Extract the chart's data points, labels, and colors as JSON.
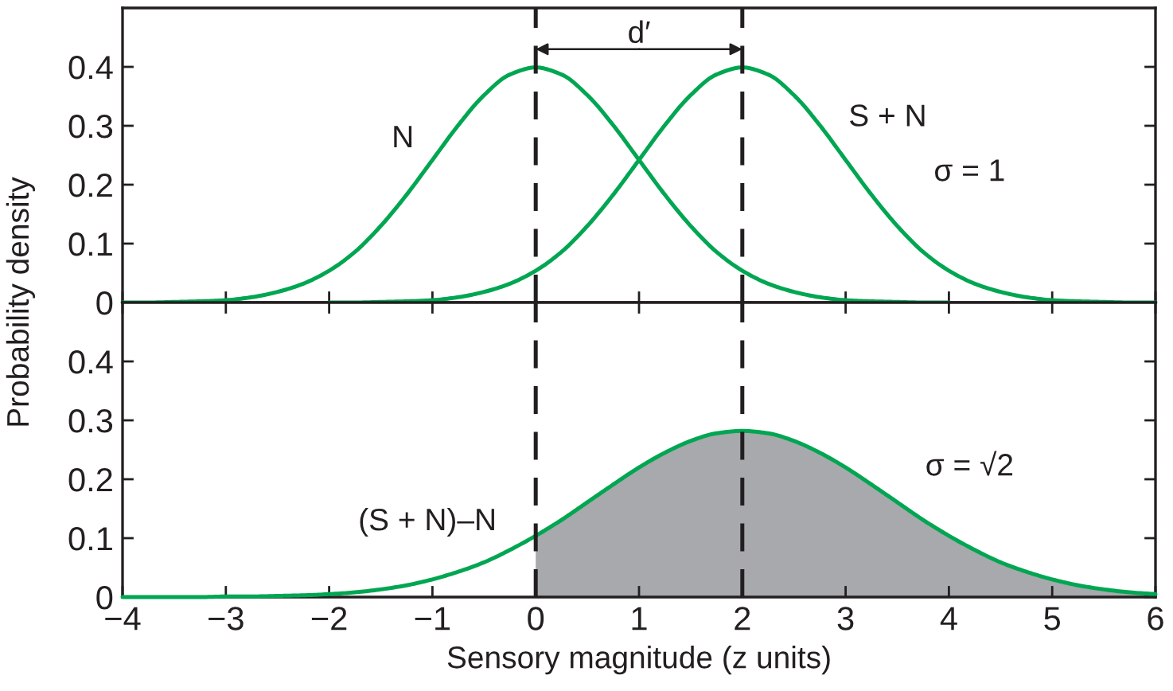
{
  "chart_data": [
    {
      "type": "line",
      "ylabel": "Probability density",
      "series": [
        {
          "color": "#00a651",
          "x": [
            -4,
            -3.75,
            -3.5,
            -3.25,
            -3,
            -2.75,
            -2.5,
            -2.25,
            -2,
            -1.75,
            -1.5,
            -1.25,
            -1,
            -0.75,
            -0.5,
            -0.25,
            0,
            0.25,
            0.5,
            0.75,
            1,
            1.25,
            1.5,
            1.75,
            2,
            2.25,
            2.5,
            2.75,
            3,
            3.25,
            3.5,
            3.75,
            4
          ],
          "values": [
            0,
            0,
            0.001,
            0.002,
            0.004,
            0.009,
            0.018,
            0.032,
            0.054,
            0.086,
            0.13,
            0.183,
            0.242,
            0.301,
            0.352,
            0.387,
            0.399,
            0.387,
            0.352,
            0.301,
            0.242,
            0.183,
            0.13,
            0.086,
            0.054,
            0.032,
            0.018,
            0.009,
            0.004,
            0.002,
            0.001,
            0,
            0
          ]
        },
        {
          "color": "#00a651",
          "x": [
            -2,
            -1.75,
            -1.5,
            -1.25,
            -1,
            -0.75,
            -0.5,
            -0.25,
            0,
            0.25,
            0.5,
            0.75,
            1,
            1.25,
            1.5,
            1.75,
            2,
            2.25,
            2.5,
            2.75,
            3,
            3.25,
            3.5,
            3.75,
            4,
            4.25,
            4.5,
            4.75,
            5,
            5.25,
            5.5,
            5.75,
            6
          ],
          "values": [
            0,
            0,
            0.001,
            0.002,
            0.004,
            0.009,
            0.018,
            0.032,
            0.054,
            0.086,
            0.13,
            0.183,
            0.242,
            0.301,
            0.352,
            0.387,
            0.399,
            0.387,
            0.352,
            0.301,
            0.242,
            0.183,
            0.13,
            0.086,
            0.054,
            0.032,
            0.018,
            0.009,
            0.004,
            0.002,
            0.001,
            0,
            0
          ]
        }
      ],
      "xlim": [
        -4,
        6
      ],
      "xticks": [
        -4,
        -3,
        -2,
        -1,
        0,
        1,
        2,
        3,
        4,
        5,
        6
      ],
      "ylim": [
        0,
        0.5
      ],
      "yticks": [
        0,
        0.1,
        0.2,
        0.3,
        0.4
      ],
      "tick_labels": "y",
      "ref_lines": [
        {
          "axis": "x",
          "value": 0,
          "color": "#231f20",
          "line_style": "dashed"
        },
        {
          "axis": "x",
          "value": 2,
          "color": "#231f20",
          "line_style": "dashed"
        }
      ],
      "annotations": [
        {
          "text": "d′",
          "x": 0,
          "y": 0.43
        },
        {
          "text": "N",
          "x": -1.05,
          "y": 0.23
        },
        {
          "text": "S + N",
          "x": 2.9,
          "y": 0.266
        },
        "σ = 1"
      ]
    },
    {
      "type": "line",
      "xlabel": "Sensory magnitude (z units)",
      "x": [
        -4,
        -3.75,
        -3.5,
        -3.25,
        -3,
        -2.75,
        -2.5,
        -2.25,
        -2,
        -1.75,
        -1.5,
        -1.25,
        -1,
        -0.75,
        -0.5,
        -0.25,
        0,
        0.25,
        0.5,
        0.75,
        1,
        1.25,
        1.5,
        1.75,
        2,
        2.25,
        2.5,
        2.75,
        3,
        3.25,
        3.5,
        3.75,
        4,
        4.25,
        4.5,
        4.75,
        5,
        5.25,
        5.5,
        5.75,
        6
      ],
      "series": [
        {
          "type": "area",
          "color": "#a7a9ac",
          "x": [
            0,
            0.25,
            0.5,
            0.75,
            1,
            1.25,
            1.5,
            1.75,
            2,
            2.25,
            2.5,
            2.75,
            3,
            3.25,
            3.5,
            3.75,
            4,
            4.25,
            4.5,
            4.75,
            5,
            5.25,
            5.5,
            5.75,
            6
          ],
          "values": [
            0.104,
            0.131,
            0.161,
            0.191,
            0.22,
            0.245,
            0.265,
            0.278,
            0.282,
            0.278,
            0.265,
            0.245,
            0.22,
            0.191,
            0.161,
            0.131,
            0.104,
            0.08,
            0.059,
            0.043,
            0.03,
            0.02,
            0.013,
            0.008,
            0.005
          ]
        },
        {
          "color": "#00a651",
          "values": [
            0,
            0,
            0,
            0,
            0.001,
            0.001,
            0.002,
            0.003,
            0.005,
            0.008,
            0.013,
            0.02,
            0.03,
            0.043,
            0.059,
            0.08,
            0.104,
            0.131,
            0.161,
            0.191,
            0.22,
            0.245,
            0.265,
            0.278,
            0.282,
            0.278,
            0.265,
            0.245,
            0.22,
            0.191,
            0.161,
            0.131,
            0.104,
            0.08,
            0.059,
            0.043,
            0.03,
            0.02,
            0.013,
            0.008,
            0.005
          ]
        }
      ],
      "xlim": [
        -4,
        6
      ],
      "xticks": [
        {
          "value": -4,
          "label": "−4"
        },
        {
          "value": -3,
          "label": "−3"
        },
        {
          "value": -2,
          "label": "−2"
        },
        {
          "value": -1,
          "label": "−1"
        },
        0,
        1,
        2,
        3,
        4,
        5,
        6
      ],
      "ylim": [
        0,
        0.5
      ],
      "yticks": [
        0,
        0.1,
        0.2,
        0.3,
        0.4
      ],
      "ref_lines": [
        {
          "axis": "x",
          "value": 0,
          "color": "#231f20",
          "line_style": "dashed"
        },
        {
          "axis": "x",
          "value": 2,
          "color": "#231f20",
          "line_style": "dashed"
        }
      ],
      "annotations": [
        {
          "text": "(S + N)–N",
          "x": -0.25,
          "y": 0.08
        },
        "σ = √2"
      ]
    }
  ]
}
